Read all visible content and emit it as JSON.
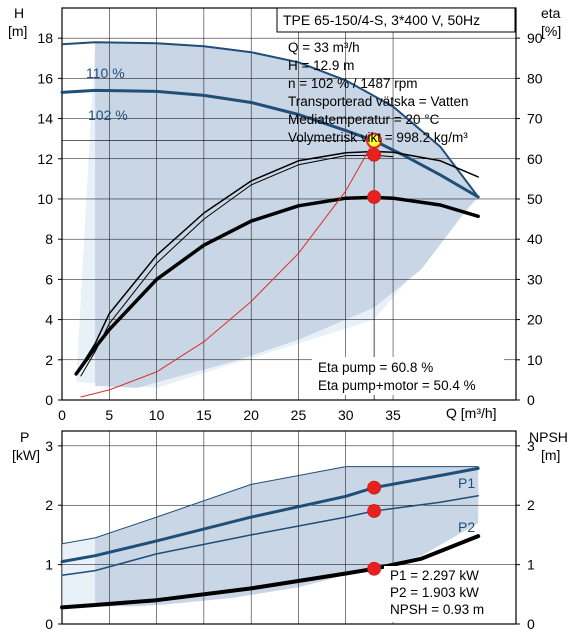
{
  "chart_data": [
    {
      "type": "line",
      "panel": "head-efficiency",
      "title": "TPE 65-150/4-S, 3*400 V, 50Hz",
      "xlabel": "Q [m³/h]",
      "ylabel_left": [
        "H",
        "[m]"
      ],
      "ylabel_right": [
        "eta",
        "[%]"
      ],
      "xlim": [
        0,
        48
      ],
      "ylim_left": [
        0,
        19.5
      ],
      "ylim_right": [
        0,
        97.5
      ],
      "x_ticks": [
        "0",
        "5",
        "10",
        "15",
        "20",
        "25",
        "30",
        "35"
      ],
      "y_ticks_left": [
        "0",
        "2",
        "4",
        "6",
        "8",
        "10",
        "12",
        "14",
        "16",
        "18"
      ],
      "y_ticks_right": [
        "0",
        "10",
        "20",
        "30",
        "40",
        "50",
        "60",
        "70",
        "80",
        "90"
      ],
      "grid": true,
      "series": [
        {
          "name": "110 %",
          "axis": "left",
          "color": "#1f4e79",
          "width": 2,
          "x": [
            0,
            3.5,
            10,
            15,
            20,
            25,
            30,
            35,
            40,
            44
          ],
          "y": [
            17.7,
            17.8,
            17.75,
            17.6,
            17.3,
            16.8,
            15.9,
            14.6,
            12.6,
            10.1
          ]
        },
        {
          "name": "102 %",
          "axis": "left",
          "color": "#1f4e79",
          "width": 3,
          "x": [
            0,
            3.5,
            10,
            15,
            20,
            25,
            30,
            33,
            36,
            40,
            44
          ],
          "y": [
            15.3,
            15.4,
            15.35,
            15.15,
            14.8,
            14.2,
            13.4,
            12.9,
            12.2,
            11.2,
            10.1
          ]
        },
        {
          "name": "",
          "axis": "right",
          "color": "#000000",
          "width": 1.5,
          "x": [
            1.5,
            3.5,
            5,
            10,
            15,
            20,
            25,
            30,
            33,
            35,
            40,
            44
          ],
          "y": [
            6.5,
            14,
            21.5,
            36,
            46.5,
            54.5,
            59.5,
            61.5,
            61.8,
            61.6,
            59.5,
            55.5
          ]
        },
        {
          "name": "",
          "axis": "right",
          "color": "#000000",
          "width": 1,
          "x": [
            2,
            3.5,
            5,
            10,
            15,
            20,
            25,
            30,
            33,
            35
          ],
          "y": [
            6,
            12,
            19,
            34,
            45,
            53.5,
            58.5,
            60.8,
            60.9,
            60.5
          ]
        },
        {
          "name": "",
          "axis": "right",
          "color": "#000000",
          "width": 3.5,
          "x": [
            1.5,
            3.5,
            5,
            10,
            15,
            20,
            25,
            30,
            33,
            35,
            40,
            44
          ],
          "y": [
            6.5,
            13,
            17.5,
            30,
            38.5,
            44.5,
            48.3,
            50.2,
            50.4,
            50.2,
            48.5,
            45.7
          ]
        },
        {
          "name": "",
          "axis": "left",
          "color": "#d9302c",
          "width": 1,
          "x": [
            2,
            5,
            10,
            15,
            20,
            25,
            30,
            33
          ],
          "y": [
            0.15,
            0.5,
            1.4,
            2.9,
            4.9,
            7.3,
            10.4,
            12.9
          ]
        }
      ],
      "duty_point": {
        "x": 33,
        "y": 12.9,
        "label": "duty-point"
      },
      "markers": [
        {
          "x": 33,
          "y": 12.2
        },
        {
          "x": 33,
          "y": 10.1
        }
      ],
      "info_lines": [
        "Q = 33 m³/h",
        "H = 12.9 m",
        "n = 102 % / 1487 rpm",
        "Transporterad vätska = Vatten",
        "Mediatemperatur = 20 °C",
        "Volymetrisk vikt = 998.2 kg/m³"
      ],
      "eta_lines": [
        "Eta pump = 60.8 %",
        "Eta pump+motor = 50.4 %"
      ]
    },
    {
      "type": "line",
      "panel": "power-npsh",
      "ylabel_left": [
        "P",
        "[kW]"
      ],
      "ylabel_right": [
        "NPSH",
        "[m]"
      ],
      "xlim": [
        0,
        48
      ],
      "ylim": [
        0,
        3.25
      ],
      "y_ticks_left": [
        "0",
        "1",
        "2",
        "3"
      ],
      "y_ticks_right": [
        "0",
        "1",
        "2",
        "3"
      ],
      "grid": true,
      "series": [
        {
          "name": "",
          "color": "#1f4e79",
          "width": 1,
          "x": [
            0,
            3.5,
            10,
            20,
            30,
            33,
            44
          ],
          "y": [
            1.35,
            1.45,
            1.8,
            2.35,
            2.65,
            2.65,
            2.65
          ]
        },
        {
          "name": "P1",
          "color": "#1f4e79",
          "width": 3,
          "x": [
            0,
            3.5,
            10,
            20,
            30,
            33,
            40,
            44
          ],
          "y": [
            1.05,
            1.15,
            1.4,
            1.8,
            2.15,
            2.297,
            2.5,
            2.62
          ]
        },
        {
          "name": "P2",
          "color": "#1f4e79",
          "width": 1.5,
          "x": [
            0,
            3.5,
            10,
            20,
            30,
            33,
            40,
            44
          ],
          "y": [
            0.82,
            0.9,
            1.18,
            1.5,
            1.8,
            1.903,
            2.05,
            2.16
          ]
        },
        {
          "name": "",
          "color": "#000000",
          "width": 4,
          "x": [
            0,
            3.5,
            10,
            20,
            30,
            33,
            38,
            44
          ],
          "y": [
            0.28,
            0.32,
            0.4,
            0.6,
            0.85,
            0.93,
            1.1,
            1.48
          ]
        }
      ],
      "markers": [
        {
          "x": 33,
          "y": 2.297
        },
        {
          "x": 33,
          "y": 1.903
        },
        {
          "x": 33,
          "y": 0.93
        }
      ],
      "info_lines": [
        "P1 = 2.297 kW",
        "P2 = 1.903 kW",
        "NPSH = 0.93 m"
      ]
    }
  ],
  "colors": {
    "region_fill": "#c9d6e6",
    "region_light": "#e8f0f8",
    "curve_blue": "#1f4e79",
    "marker_red": "#e8211f",
    "duty_yellow": "#ffff33",
    "grid": "#000000"
  }
}
